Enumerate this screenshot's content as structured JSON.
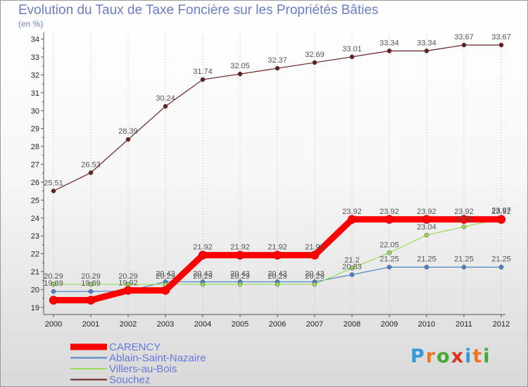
{
  "chart_data": {
    "type": "line",
    "title": "Evolution du Taux de Taxe Foncière sur les Propriétés Bâties",
    "ylabel": "(en %)",
    "xlabel": "",
    "x": [
      2000,
      2001,
      2002,
      2003,
      2004,
      2005,
      2006,
      2007,
      2008,
      2009,
      2010,
      2011,
      2012
    ],
    "ylim": [
      18.6,
      34.3
    ],
    "yticks": [
      19,
      20,
      21,
      22,
      23,
      24,
      25,
      26,
      27,
      28,
      29,
      30,
      31,
      32,
      33,
      34
    ],
    "legend_position": "bottom-left",
    "series": [
      {
        "name": "CARENCY",
        "color": "#ff0000",
        "values": [
          19.4,
          19.4,
          19.95,
          19.95,
          21.92,
          21.92,
          21.92,
          21.92,
          23.92,
          23.92,
          23.92,
          23.92,
          23.92
        ],
        "labels": [
          "",
          "",
          "",
          "",
          "21.92",
          "21.92",
          "21.92",
          "21.92",
          "23.92",
          "23.92",
          "23.92",
          "23.92",
          "23.92"
        ]
      },
      {
        "name": "Ablain-Saint-Nazaire",
        "color": "#4a86c8",
        "values": [
          19.89,
          19.89,
          19.92,
          20.43,
          20.43,
          20.43,
          20.43,
          20.43,
          20.83,
          21.25,
          21.25,
          21.25,
          21.25
        ],
        "labels": [
          "19.89",
          "19.89",
          "19.92",
          "20.43",
          "20.43",
          "20.43",
          "20.43",
          "20.43",
          "20.83",
          "21.25",
          "21.25",
          "21.25",
          "21.25"
        ]
      },
      {
        "name": "Villers-au-Bois",
        "color": "#99dd55",
        "values": [
          20.29,
          20.29,
          20.29,
          20.29,
          20.29,
          20.29,
          20.29,
          20.29,
          21.2,
          22.05,
          23.04,
          23.5,
          23.97
        ],
        "labels": [
          "20.29",
          "20.29",
          "20.29",
          "20.29",
          "20.29",
          "20.29",
          "20.29",
          "20.29",
          "21.2",
          "22.05",
          "23.04",
          "23.5",
          "23.97"
        ]
      },
      {
        "name": "Souchez",
        "color": "#6b1f1f",
        "values": [
          25.51,
          26.53,
          28.39,
          30.24,
          31.74,
          32.05,
          32.37,
          32.69,
          33.01,
          33.34,
          33.34,
          33.67,
          33.67
        ],
        "labels": [
          "25.51",
          "26.53",
          "28.39",
          "30.24",
          "31.74",
          "32.05",
          "32.37",
          "32.69",
          "33.01",
          "33.34",
          "33.34",
          "33.67",
          "33.67"
        ]
      }
    ]
  },
  "logo": {
    "text": "Proxiti",
    "colors": [
      "#3399dd",
      "#ee7722",
      "#44aa33",
      "#dd3322",
      "#3399dd",
      "#ee7722",
      "#44aa33"
    ]
  }
}
